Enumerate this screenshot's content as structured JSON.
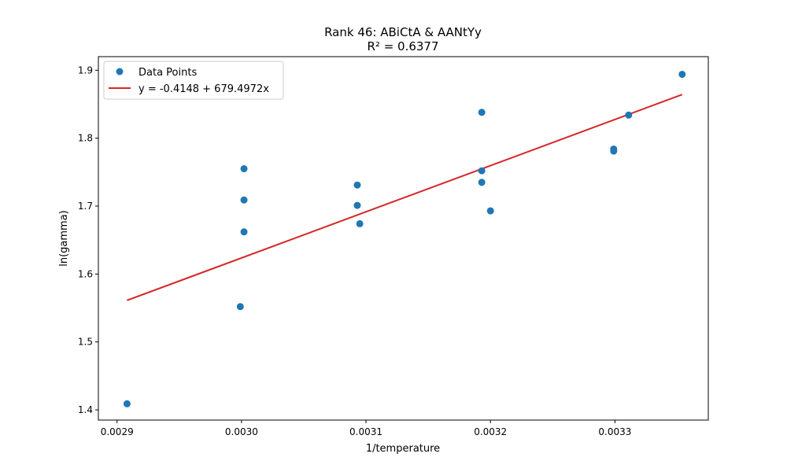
{
  "chart_data": {
    "type": "scatter",
    "title": "Rank 46: ABiCtA & AANtYy",
    "subtitle": "R² = 0.6377",
    "xlabel": "1/temperature",
    "ylabel": "ln(gamma)",
    "xlim": [
      0.002885,
      0.003375
    ],
    "ylim": [
      1.385,
      1.92
    ],
    "xticks": [
      {
        "value": 0.0029,
        "label": "0.0029"
      },
      {
        "value": 0.003,
        "label": "0.0030"
      },
      {
        "value": 0.0031,
        "label": "0.0031"
      },
      {
        "value": 0.0032,
        "label": "0.0032"
      },
      {
        "value": 0.0033,
        "label": "0.0033"
      }
    ],
    "yticks": [
      {
        "value": 1.4,
        "label": "1.4"
      },
      {
        "value": 1.5,
        "label": "1.5"
      },
      {
        "value": 1.6,
        "label": "1.6"
      },
      {
        "value": 1.7,
        "label": "1.7"
      },
      {
        "value": 1.8,
        "label": "1.8"
      },
      {
        "value": 1.9,
        "label": "1.9"
      }
    ],
    "grid": false,
    "legend_placement": "top-left",
    "series": [
      {
        "name": "Data Points",
        "kind": "scatter",
        "color": "#1f77b4",
        "points": [
          [
            0.002908,
            1.409
          ],
          [
            0.002999,
            1.552
          ],
          [
            0.003002,
            1.662
          ],
          [
            0.003002,
            1.709
          ],
          [
            0.003002,
            1.755
          ],
          [
            0.003093,
            1.731
          ],
          [
            0.003093,
            1.701
          ],
          [
            0.003095,
            1.674
          ],
          [
            0.003193,
            1.838
          ],
          [
            0.003193,
            1.752
          ],
          [
            0.003193,
            1.735
          ],
          [
            0.0032,
            1.693
          ],
          [
            0.003299,
            1.784
          ],
          [
            0.003299,
            1.781
          ],
          [
            0.003311,
            1.834
          ],
          [
            0.003354,
            1.894
          ]
        ]
      },
      {
        "name": "y = -0.4148 + 679.4972x",
        "kind": "line",
        "color": "#d62728",
        "intercept": -0.4148,
        "slope": 679.4972,
        "x_range": [
          0.002908,
          0.003354
        ]
      }
    ]
  }
}
